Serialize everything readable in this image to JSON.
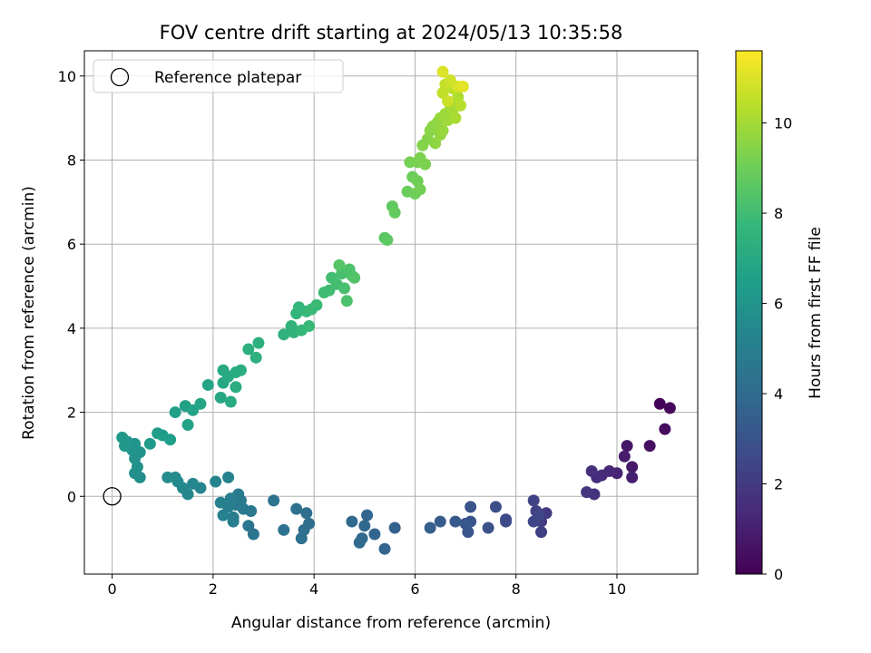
{
  "chart_data": {
    "type": "scatter",
    "title": "FOV centre drift starting at 2024/05/13 10:35:58",
    "xlabel": "Angular distance from reference (arcmin)",
    "ylabel": "Rotation from reference (arcmin)",
    "colorbar_label": "Hours from first FF file",
    "colormap": "viridis",
    "xlim": [
      -0.55,
      11.6
    ],
    "ylim": [
      -1.85,
      10.6
    ],
    "clim": [
      0,
      11.6
    ],
    "xticks": [
      0,
      2,
      4,
      6,
      8,
      10
    ],
    "yticks": [
      0,
      2,
      4,
      6,
      8,
      10
    ],
    "cticks": [
      0,
      2,
      4,
      6,
      8,
      10
    ],
    "grid": true,
    "legend": {
      "position": "top-left",
      "entries": [
        "Reference platepar"
      ]
    },
    "reference_point": {
      "x": 0,
      "y": 0,
      "label": "Reference platepar"
    },
    "points": [
      [
        10.85,
        2.2,
        0.1
      ],
      [
        11.05,
        2.1,
        0.2
      ],
      [
        10.95,
        1.6,
        0.35
      ],
      [
        10.65,
        1.2,
        0.5
      ],
      [
        10.2,
        1.2,
        0.7
      ],
      [
        10.3,
        0.7,
        0.8
      ],
      [
        10.15,
        0.95,
        0.9
      ],
      [
        10.3,
        0.45,
        1.0
      ],
      [
        10.0,
        0.55,
        1.15
      ],
      [
        9.85,
        0.6,
        1.3
      ],
      [
        9.7,
        0.5,
        1.4
      ],
      [
        9.6,
        0.45,
        1.5
      ],
      [
        9.5,
        0.6,
        1.6
      ],
      [
        9.55,
        0.05,
        1.7
      ],
      [
        9.4,
        0.1,
        1.8
      ],
      [
        8.6,
        -0.4,
        2.0
      ],
      [
        8.5,
        -0.6,
        2.1
      ],
      [
        8.5,
        -0.85,
        2.2
      ],
      [
        8.4,
        -0.35,
        2.3
      ],
      [
        8.35,
        -0.1,
        2.35
      ],
      [
        8.35,
        -0.6,
        2.4
      ],
      [
        8.45,
        -0.45,
        2.5
      ],
      [
        7.8,
        -0.55,
        2.6
      ],
      [
        7.8,
        -0.6,
        2.7
      ],
      [
        7.6,
        -0.25,
        2.8
      ],
      [
        7.45,
        -0.75,
        2.9
      ],
      [
        7.1,
        -0.25,
        3.0
      ],
      [
        7.1,
        -0.6,
        3.05
      ],
      [
        7.05,
        -0.85,
        3.1
      ],
      [
        7.0,
        -0.65,
        3.2
      ],
      [
        6.8,
        -0.6,
        3.3
      ],
      [
        6.5,
        -0.6,
        3.4
      ],
      [
        6.3,
        -0.75,
        3.5
      ],
      [
        5.6,
        -0.75,
        3.6
      ],
      [
        5.4,
        -1.25,
        3.7
      ],
      [
        5.2,
        -0.9,
        3.75
      ],
      [
        5.05,
        -0.45,
        3.8
      ],
      [
        5.0,
        -0.7,
        3.85
      ],
      [
        4.95,
        -1.0,
        3.9
      ],
      [
        4.9,
        -1.1,
        3.95
      ],
      [
        4.75,
        -0.6,
        4.0
      ],
      [
        3.9,
        -0.65,
        4.1
      ],
      [
        3.85,
        -0.4,
        4.15
      ],
      [
        3.8,
        -0.8,
        4.2
      ],
      [
        3.75,
        -1.0,
        4.25
      ],
      [
        3.65,
        -0.3,
        4.3
      ],
      [
        3.4,
        -0.8,
        4.35
      ],
      [
        3.2,
        -0.1,
        4.4
      ],
      [
        2.8,
        -0.9,
        4.5
      ],
      [
        2.7,
        -0.7,
        4.55
      ],
      [
        2.75,
        -0.35,
        4.6
      ],
      [
        2.6,
        -0.3,
        4.65
      ],
      [
        2.55,
        -0.1,
        4.7
      ],
      [
        2.5,
        0.05,
        4.75
      ],
      [
        2.45,
        -0.2,
        4.8
      ],
      [
        2.4,
        -0.5,
        4.85
      ],
      [
        2.4,
        -0.6,
        4.9
      ],
      [
        2.35,
        -0.05,
        4.95
      ],
      [
        2.3,
        -0.25,
        5.0
      ],
      [
        2.2,
        -0.45,
        5.05
      ],
      [
        2.15,
        -0.15,
        5.1
      ],
      [
        2.3,
        0.45,
        5.2
      ],
      [
        2.05,
        0.35,
        5.25
      ],
      [
        1.75,
        0.2,
        5.3
      ],
      [
        1.6,
        0.3,
        5.35
      ],
      [
        1.5,
        0.05,
        5.4
      ],
      [
        1.4,
        0.2,
        5.45
      ],
      [
        1.3,
        0.35,
        5.5
      ],
      [
        1.25,
        0.45,
        5.55
      ],
      [
        1.1,
        0.45,
        5.6
      ],
      [
        0.55,
        0.45,
        5.75
      ],
      [
        0.45,
        0.55,
        5.8
      ],
      [
        0.5,
        0.7,
        5.85
      ],
      [
        0.45,
        0.9,
        5.9
      ],
      [
        0.55,
        1.05,
        5.95
      ],
      [
        0.4,
        1.1,
        6.0
      ],
      [
        0.45,
        1.25,
        6.05
      ],
      [
        0.3,
        1.3,
        6.1
      ],
      [
        0.25,
        1.2,
        6.15
      ],
      [
        0.2,
        1.4,
        6.2
      ],
      [
        0.75,
        1.25,
        6.25
      ],
      [
        0.9,
        1.5,
        6.35
      ],
      [
        1.0,
        1.45,
        6.4
      ],
      [
        1.15,
        1.35,
        6.45
      ],
      [
        1.25,
        2.0,
        6.55
      ],
      [
        1.45,
        2.15,
        6.6
      ],
      [
        1.5,
        1.7,
        6.65
      ],
      [
        1.6,
        2.05,
        6.7
      ],
      [
        1.75,
        2.2,
        6.75
      ],
      [
        1.9,
        2.65,
        6.8
      ],
      [
        2.15,
        2.35,
        6.85
      ],
      [
        2.2,
        2.7,
        6.9
      ],
      [
        2.2,
        3.0,
        6.95
      ],
      [
        2.3,
        2.85,
        7.0
      ],
      [
        2.35,
        2.25,
        7.05
      ],
      [
        2.45,
        2.6,
        7.1
      ],
      [
        2.45,
        2.95,
        7.15
      ],
      [
        2.55,
        3.0,
        7.2
      ],
      [
        2.7,
        3.5,
        7.25
      ],
      [
        2.85,
        3.3,
        7.3
      ],
      [
        2.9,
        3.65,
        7.35
      ],
      [
        3.4,
        3.85,
        7.45
      ],
      [
        3.55,
        4.05,
        7.5
      ],
      [
        3.6,
        3.9,
        7.55
      ],
      [
        3.65,
        4.35,
        7.6
      ],
      [
        3.7,
        4.5,
        7.65
      ],
      [
        3.75,
        3.95,
        7.7
      ],
      [
        3.85,
        4.4,
        7.75
      ],
      [
        3.9,
        4.05,
        7.8
      ],
      [
        3.95,
        4.45,
        7.85
      ],
      [
        4.05,
        4.55,
        7.9
      ],
      [
        4.2,
        4.85,
        7.95
      ],
      [
        4.3,
        4.9,
        8.0
      ],
      [
        4.35,
        5.2,
        8.05
      ],
      [
        4.45,
        5.05,
        8.1
      ],
      [
        4.55,
        5.3,
        8.15
      ],
      [
        4.6,
        4.95,
        8.2
      ],
      [
        4.65,
        4.65,
        8.25
      ],
      [
        4.7,
        5.4,
        8.3
      ],
      [
        4.75,
        5.25,
        8.35
      ],
      [
        4.8,
        5.2,
        8.4
      ],
      [
        4.5,
        5.5,
        8.45
      ],
      [
        5.4,
        6.15,
        8.6
      ],
      [
        5.45,
        6.1,
        8.65
      ],
      [
        5.55,
        6.9,
        8.75
      ],
      [
        5.6,
        6.75,
        8.8
      ],
      [
        5.85,
        7.25,
        8.9
      ],
      [
        5.95,
        7.6,
        8.95
      ],
      [
        6.0,
        7.2,
        9.0
      ],
      [
        6.05,
        7.5,
        9.05
      ],
      [
        6.1,
        7.3,
        9.1
      ],
      [
        5.9,
        7.95,
        9.15
      ],
      [
        6.05,
        7.95,
        9.2
      ],
      [
        6.1,
        8.05,
        9.25
      ],
      [
        6.2,
        7.9,
        9.3
      ],
      [
        6.15,
        8.35,
        9.4
      ],
      [
        6.25,
        8.5,
        9.45
      ],
      [
        6.3,
        8.7,
        9.5
      ],
      [
        6.35,
        8.8,
        9.55
      ],
      [
        6.4,
        8.4,
        9.6
      ],
      [
        6.45,
        8.9,
        9.65
      ],
      [
        6.5,
        8.6,
        9.7
      ],
      [
        6.5,
        9.0,
        9.75
      ],
      [
        6.55,
        8.7,
        9.8
      ],
      [
        6.6,
        9.1,
        9.85
      ],
      [
        6.65,
        8.95,
        9.9
      ],
      [
        6.7,
        9.3,
        9.95
      ],
      [
        6.75,
        9.2,
        10.0
      ],
      [
        6.8,
        9.0,
        10.1
      ],
      [
        6.85,
        9.5,
        10.2
      ],
      [
        6.9,
        9.3,
        10.3
      ],
      [
        6.75,
        9.7,
        10.4
      ],
      [
        6.55,
        9.6,
        10.5
      ],
      [
        6.6,
        9.8,
        10.6
      ],
      [
        6.65,
        9.4,
        10.7
      ],
      [
        6.7,
        9.9,
        10.8
      ],
      [
        6.85,
        9.75,
        10.9
      ],
      [
        6.55,
        10.1,
        11.0
      ],
      [
        6.95,
        9.75,
        11.1
      ]
    ]
  }
}
